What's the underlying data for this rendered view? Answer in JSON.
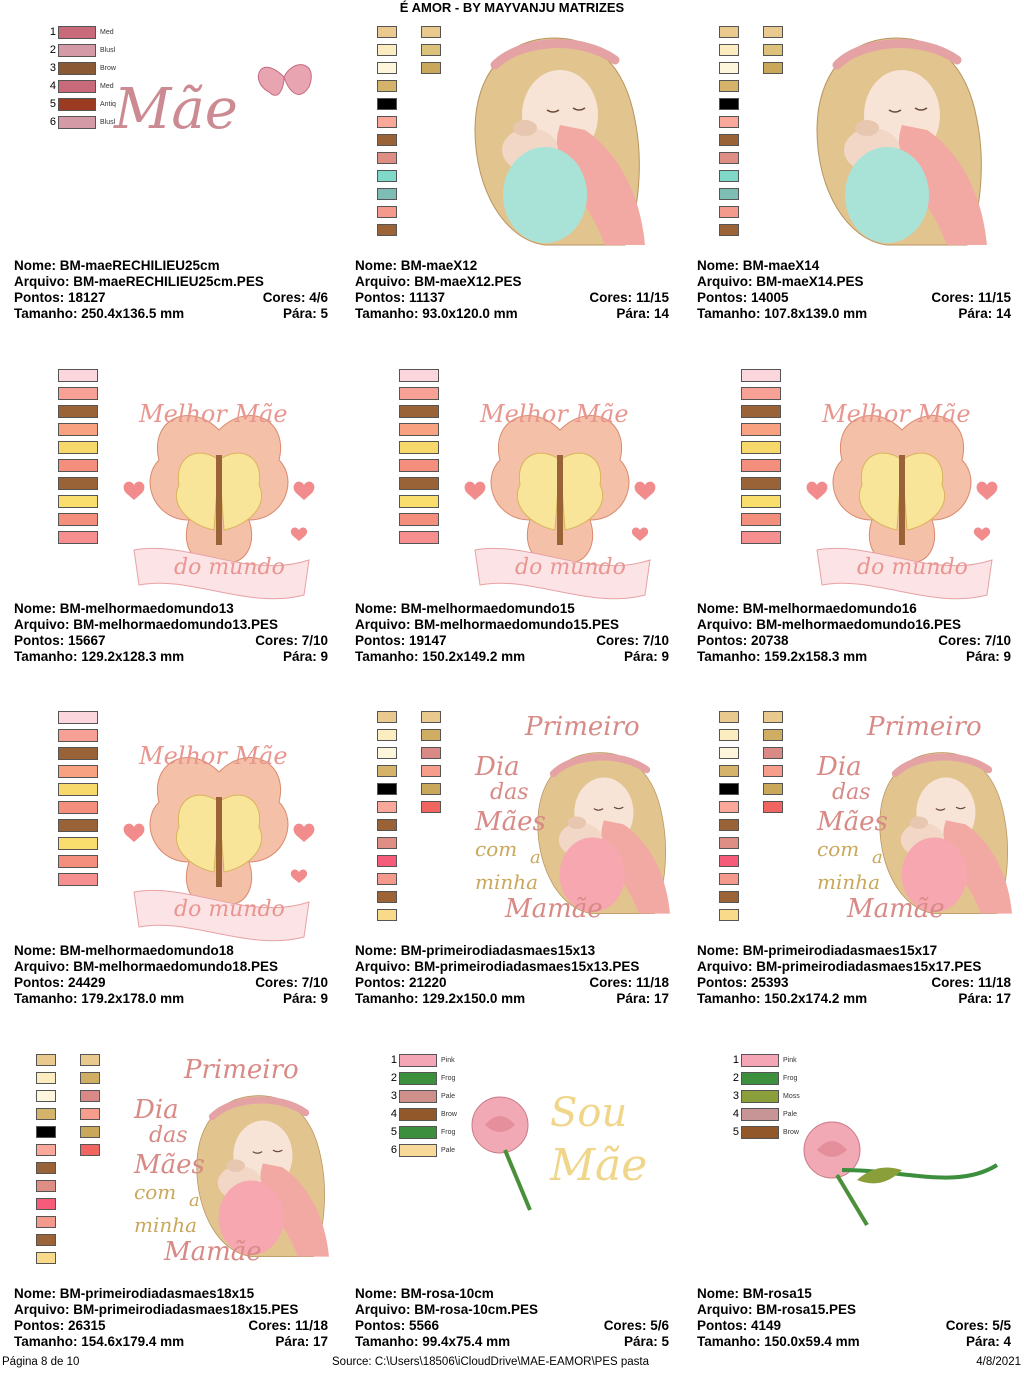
{
  "header": {
    "title": "É AMOR - BY MAYVANJU MATRIZES"
  },
  "labels": {
    "nome": "Nome:",
    "arquivo": "Arquivo:",
    "pontos": "Pontos:",
    "cores": "Cores:",
    "tamanho": "Tamanho:",
    "para": "Pára:"
  },
  "designs": [
    {
      "nome": "BM-maeRECHILIEU25cm",
      "arquivo": "BM-maeRECHILIEU25cm.PES",
      "pontos": "18127",
      "cores": "4/6",
      "tamanho": "250.4x136.5 mm",
      "para": "5",
      "art_text": "Mãe",
      "palette": {
        "style": "numbered",
        "items": [
          {
            "n": "1",
            "label": "Med",
            "color": "#c96a7a"
          },
          {
            "n": "2",
            "label": "Blusl",
            "color": "#d49aa5"
          },
          {
            "n": "3",
            "label": "Brow",
            "color": "#8b5a35"
          },
          {
            "n": "4",
            "label": "Med",
            "color": "#c96a7a"
          },
          {
            "n": "5",
            "label": "Antiq",
            "color": "#9b3b22"
          },
          {
            "n": "6",
            "label": "Blusl",
            "color": "#d49aa5"
          }
        ]
      }
    },
    {
      "nome": "BM-maeX12",
      "arquivo": "BM-maeX12.PES",
      "pontos": "11137",
      "cores": "11/15",
      "tamanho": "93.0x120.0 mm",
      "para": "14",
      "palette": {
        "style": "grid",
        "cols": [
          [
            "#e9c98e",
            "#fbedc0",
            "#fdf6dd",
            "#d6b36a",
            "#000000",
            "#f9a89a",
            "#9a6337",
            "#df8e86",
            "#7fd8c8",
            "#7dbdb3",
            "#f39a8d",
            "#9b6336"
          ],
          [
            "#e9c98e",
            "#dcc27a",
            "#c9a85b"
          ]
        ]
      }
    },
    {
      "nome": "BM-maeX14",
      "arquivo": "BM-maeX14.PES",
      "pontos": "14005",
      "cores": "11/15",
      "tamanho": "107.8x139.0 mm",
      "para": "14",
      "palette": {
        "style": "grid",
        "cols": [
          [
            "#e9c98e",
            "#fbedc0",
            "#fdf6dd",
            "#d6b36a",
            "#000000",
            "#f9a89a",
            "#9a6337",
            "#df8e86",
            "#7fd8c8",
            "#7dbdb3",
            "#f39a8d",
            "#9b6336"
          ],
          [
            "#e9c98e",
            "#dcc27a",
            "#c9a85b"
          ]
        ]
      }
    },
    {
      "nome": "BM-melhormaedomundo13",
      "arquivo": "BM-melhormaedomundo13.PES",
      "pontos": "15667",
      "cores": "7/10",
      "tamanho": "129.2x128.3 mm",
      "para": "9",
      "art_text": {
        "top": "Melhor Mãe",
        "bottom": "do mundo"
      },
      "palette": {
        "style": "single",
        "cols": [
          [
            "#fcd6dd",
            "#f7a095",
            "#9a6337",
            "#f9a281",
            "#f7d86a",
            "#f58f7d",
            "#9a6337",
            "#f9de6e",
            "#f58f7d",
            "#f68f8f"
          ]
        ]
      }
    },
    {
      "nome": "BM-melhormaedomundo15",
      "arquivo": "BM-melhormaedomundo15.PES",
      "pontos": "19147",
      "cores": "7/10",
      "tamanho": "150.2x149.2 mm",
      "para": "9",
      "art_text": {
        "top": "Melhor Mãe",
        "bottom": "do mundo"
      },
      "palette": {
        "style": "single",
        "cols": [
          [
            "#fcd6dd",
            "#f7a095",
            "#9a6337",
            "#f9a281",
            "#f7d86a",
            "#f58f7d",
            "#9a6337",
            "#f9de6e",
            "#f58f7d",
            "#f68f8f"
          ]
        ]
      }
    },
    {
      "nome": "BM-melhormaedomundo16",
      "arquivo": "BM-melhormaedomundo16.PES",
      "pontos": "20738",
      "cores": "7/10",
      "tamanho": "159.2x158.3 mm",
      "para": "9",
      "art_text": {
        "top": "Melhor Mãe",
        "bottom": "do mundo"
      },
      "palette": {
        "style": "single",
        "cols": [
          [
            "#fcd6dd",
            "#f7a095",
            "#9a6337",
            "#f9a281",
            "#f7d86a",
            "#f58f7d",
            "#9a6337",
            "#f9de6e",
            "#f58f7d",
            "#f68f8f"
          ]
        ]
      }
    },
    {
      "nome": "BM-melhormaedomundo18",
      "arquivo": "BM-melhormaedomundo18.PES",
      "pontos": "24429",
      "cores": "7/10",
      "tamanho": "179.2x178.0 mm",
      "para": "9",
      "art_text": {
        "top": "Melhor Mãe",
        "bottom": "do mundo"
      },
      "palette": {
        "style": "single",
        "cols": [
          [
            "#fcd6dd",
            "#f7a095",
            "#9a6337",
            "#f9a281",
            "#f7d86a",
            "#f58f7d",
            "#9a6337",
            "#f9de6e",
            "#f58f7d",
            "#f68f8f"
          ]
        ]
      }
    },
    {
      "nome": "BM-primeirodiadasmaes15x13",
      "arquivo": "BM-primeirodiadasmaes15x13.PES",
      "pontos": "21220",
      "cores": "11/18",
      "tamanho": "129.2x150.0 mm",
      "para": "17",
      "art_text": {
        "l1": "Primeiro",
        "l2": "Dia",
        "l3": "das",
        "l4": "Mães",
        "l5": "com",
        "l6": "a",
        "l7": "minha",
        "l8": "Mamãe"
      },
      "palette": {
        "style": "grid",
        "cols": [
          [
            "#e9c98e",
            "#fbedc0",
            "#fdf6dd",
            "#d6b36a",
            "#000000",
            "#f9a89a",
            "#9a6337",
            "#df8e86",
            "#f65c7a",
            "#f39a8d",
            "#9b6336",
            "#f9d98a"
          ],
          [
            "#e9c98e",
            "#cfae63",
            "#d98a86",
            "#f79d8c",
            "#c9a85b",
            "#f0655f"
          ]
        ]
      }
    },
    {
      "nome": "BM-primeirodiadasmaes15x17",
      "arquivo": "BM-primeirodiadasmaes15x17.PES",
      "pontos": "25393",
      "cores": "11/18",
      "tamanho": "150.2x174.2 mm",
      "para": "17",
      "art_text": {
        "l1": "Primeiro",
        "l2": "Dia",
        "l3": "das",
        "l4": "Mães",
        "l5": "com",
        "l6": "a",
        "l7": "minha",
        "l8": "Mamãe"
      },
      "palette": {
        "style": "grid",
        "cols": [
          [
            "#e9c98e",
            "#fbedc0",
            "#fdf6dd",
            "#d6b36a",
            "#000000",
            "#f9a89a",
            "#9a6337",
            "#df8e86",
            "#f65c7a",
            "#f39a8d",
            "#9b6336",
            "#f9d98a"
          ],
          [
            "#e9c98e",
            "#cfae63",
            "#d98a86",
            "#f79d8c",
            "#c9a85b",
            "#f0655f"
          ]
        ]
      }
    },
    {
      "nome": "BM-primeirodiadasmaes18x15",
      "arquivo": "BM-primeirodiadasmaes18x15.PES",
      "pontos": "26315",
      "cores": "11/18",
      "tamanho": "154.6x179.4 mm",
      "para": "17",
      "art_text": {
        "l1": "Primeiro",
        "l2": "Dia",
        "l3": "das",
        "l4": "Mães",
        "l5": "com",
        "l6": "a",
        "l7": "minha",
        "l8": "Mamãe"
      },
      "palette": {
        "style": "grid",
        "cols": [
          [
            "#e9c98e",
            "#fbedc0",
            "#fdf6dd",
            "#d6b36a",
            "#000000",
            "#f9a89a",
            "#9a6337",
            "#df8e86",
            "#f65c7a",
            "#f39a8d",
            "#9b6336",
            "#f9d98a"
          ],
          [
            "#e9c98e",
            "#cfae63",
            "#d98a86",
            "#f79d8c",
            "#c9a85b",
            "#f0655f"
          ]
        ]
      }
    },
    {
      "nome": "BM-rosa-10cm",
      "arquivo": "BM-rosa-10cm.PES",
      "pontos": "5566",
      "cores": "5/6",
      "tamanho": "99.4x75.4 mm",
      "para": "5",
      "art_text": {
        "l1": "Sou",
        "l2": "Mãe"
      },
      "palette": {
        "style": "numbered",
        "items": [
          {
            "n": "1",
            "label": "Pink",
            "color": "#f4a6b6"
          },
          {
            "n": "2",
            "label": "Frog",
            "color": "#3c8f3c"
          },
          {
            "n": "3",
            "label": "Pale",
            "color": "#cf8f8a"
          },
          {
            "n": "4",
            "label": "Brow",
            "color": "#93582a"
          },
          {
            "n": "5",
            "label": "Frog",
            "color": "#3c8f3c"
          },
          {
            "n": "6",
            "label": "Pale",
            "color": "#f8d99a"
          }
        ]
      }
    },
    {
      "nome": "BM-rosa15",
      "arquivo": "BM-rosa15.PES",
      "pontos": "4149",
      "cores": "5/5",
      "tamanho": "150.0x59.4 mm",
      "para": "4",
      "palette": {
        "style": "numbered",
        "items": [
          {
            "n": "1",
            "label": "Pink",
            "color": "#f4a6b6"
          },
          {
            "n": "2",
            "label": "Frog",
            "color": "#3c8f3c"
          },
          {
            "n": "3",
            "label": "Moss",
            "color": "#8a9f3a"
          },
          {
            "n": "4",
            "label": "Pale",
            "color": "#c79595"
          },
          {
            "n": "5",
            "label": "Brow",
            "color": "#93582a"
          }
        ]
      }
    }
  ],
  "footer": {
    "page": "Página 8 de 10",
    "source": "Source: C:\\Users\\18506\\iCloudDrive\\MAE-EAMOR\\PES pasta",
    "date": "4/8/2021"
  }
}
